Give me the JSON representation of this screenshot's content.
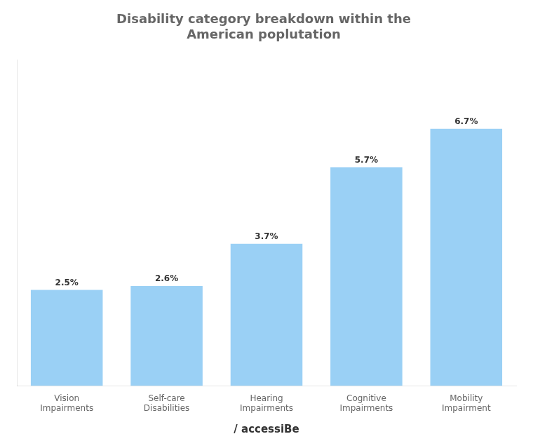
{
  "chart_data": {
    "type": "bar",
    "title": "Disability category breakdown within the\nAmerican poplutation",
    "categories": [
      "Vision\nImpairments",
      "Self-care\nDisabilities",
      "Hearing\nImpairments",
      "Cognitive\nImpairments",
      "Mobility\nImpairment"
    ],
    "values": [
      2.5,
      2.6,
      3.7,
      5.7,
      6.7
    ],
    "value_labels": [
      "2.5%",
      "2.6%",
      "3.7%",
      "5.7%",
      "6.7%"
    ],
    "data_labels": true,
    "ylim": [
      0,
      8.5
    ],
    "tick_labels": "x",
    "grid": false,
    "annotations": [
      "/",
      "accessiBe"
    ]
  }
}
